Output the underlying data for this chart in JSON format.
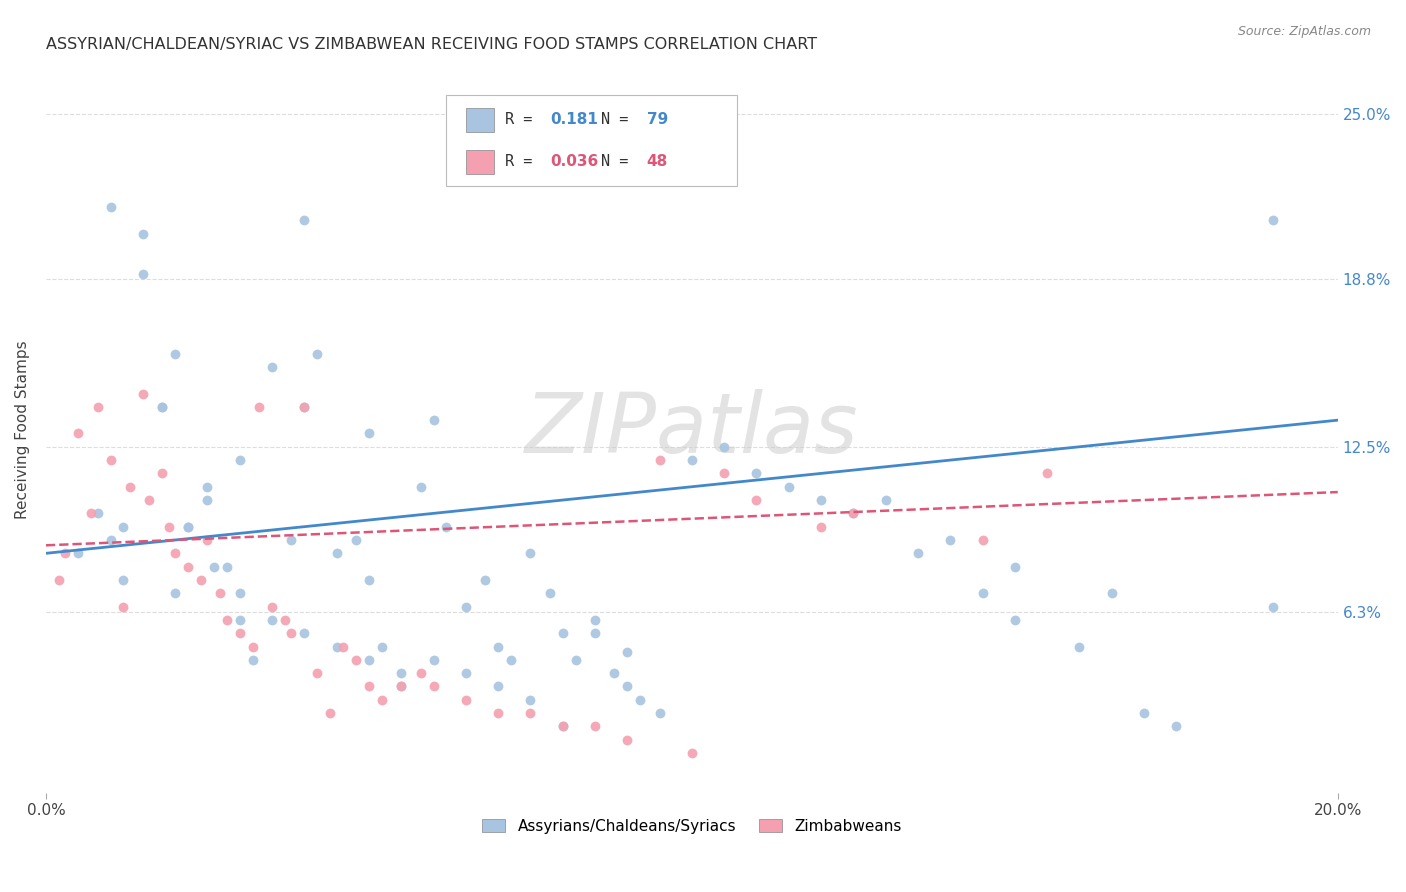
{
  "title": "ASSYRIAN/CHALDEAN/SYRIAC VS ZIMBABWEAN RECEIVING FOOD STAMPS CORRELATION CHART",
  "source": "Source: ZipAtlas.com",
  "ylabel": "Receiving Food Stamps",
  "ytick_labels": [
    "25.0%",
    "18.8%",
    "12.5%",
    "6.3%"
  ],
  "ytick_values": [
    0.25,
    0.188,
    0.125,
    0.063
  ],
  "xlim": [
    0.0,
    0.2
  ],
  "ylim": [
    -0.005,
    0.268
  ],
  "legend_series": [
    {
      "label": "Assyrians/Chaldeans/Syriacs",
      "color": "#a8c4e0",
      "R": "0.181",
      "N": "79"
    },
    {
      "label": "Zimbabweans",
      "color": "#f4a0b0",
      "R": "0.036",
      "N": "48"
    }
  ],
  "watermark": "ZIPatlas",
  "blue_scatter_x": [
    0.005,
    0.01,
    0.01,
    0.012,
    0.015,
    0.015,
    0.018,
    0.02,
    0.02,
    0.022,
    0.025,
    0.025,
    0.028,
    0.03,
    0.03,
    0.032,
    0.035,
    0.038,
    0.04,
    0.04,
    0.042,
    0.045,
    0.048,
    0.05,
    0.05,
    0.052,
    0.055,
    0.058,
    0.06,
    0.062,
    0.065,
    0.068,
    0.07,
    0.072,
    0.075,
    0.078,
    0.08,
    0.082,
    0.085,
    0.088,
    0.09,
    0.092,
    0.095,
    0.1,
    0.105,
    0.11,
    0.115,
    0.12,
    0.125,
    0.13,
    0.135,
    0.14,
    0.145,
    0.15,
    0.16,
    0.165,
    0.17,
    0.175,
    0.19,
    0.008,
    0.012,
    0.018,
    0.022,
    0.026,
    0.03,
    0.035,
    0.04,
    0.045,
    0.05,
    0.055,
    0.06,
    0.065,
    0.07,
    0.075,
    0.08,
    0.085,
    0.09,
    0.15,
    0.19
  ],
  "blue_scatter_y": [
    0.085,
    0.215,
    0.09,
    0.095,
    0.19,
    0.205,
    0.14,
    0.16,
    0.07,
    0.095,
    0.105,
    0.11,
    0.08,
    0.06,
    0.12,
    0.045,
    0.155,
    0.09,
    0.21,
    0.14,
    0.16,
    0.085,
    0.09,
    0.13,
    0.075,
    0.05,
    0.035,
    0.11,
    0.135,
    0.095,
    0.065,
    0.075,
    0.05,
    0.045,
    0.085,
    0.07,
    0.055,
    0.045,
    0.055,
    0.04,
    0.035,
    0.03,
    0.025,
    0.12,
    0.125,
    0.115,
    0.11,
    0.105,
    0.1,
    0.105,
    0.085,
    0.09,
    0.07,
    0.08,
    0.05,
    0.07,
    0.025,
    0.02,
    0.065,
    0.1,
    0.075,
    0.14,
    0.095,
    0.08,
    0.07,
    0.06,
    0.055,
    0.05,
    0.045,
    0.04,
    0.045,
    0.04,
    0.035,
    0.03,
    0.02,
    0.06,
    0.048,
    0.06,
    0.21
  ],
  "pink_scatter_x": [
    0.002,
    0.003,
    0.005,
    0.007,
    0.008,
    0.01,
    0.012,
    0.013,
    0.015,
    0.016,
    0.018,
    0.019,
    0.02,
    0.022,
    0.024,
    0.025,
    0.027,
    0.028,
    0.03,
    0.032,
    0.033,
    0.035,
    0.037,
    0.038,
    0.04,
    0.042,
    0.044,
    0.046,
    0.048,
    0.05,
    0.052,
    0.055,
    0.058,
    0.06,
    0.065,
    0.07,
    0.075,
    0.08,
    0.085,
    0.09,
    0.095,
    0.1,
    0.105,
    0.11,
    0.12,
    0.125,
    0.145,
    0.155
  ],
  "pink_scatter_y": [
    0.075,
    0.085,
    0.13,
    0.1,
    0.14,
    0.12,
    0.065,
    0.11,
    0.145,
    0.105,
    0.115,
    0.095,
    0.085,
    0.08,
    0.075,
    0.09,
    0.07,
    0.06,
    0.055,
    0.05,
    0.14,
    0.065,
    0.06,
    0.055,
    0.14,
    0.04,
    0.025,
    0.05,
    0.045,
    0.035,
    0.03,
    0.035,
    0.04,
    0.035,
    0.03,
    0.025,
    0.025,
    0.02,
    0.02,
    0.015,
    0.12,
    0.01,
    0.115,
    0.105,
    0.095,
    0.1,
    0.09,
    0.115
  ],
  "blue_line_x": [
    0.0,
    0.2
  ],
  "blue_line_y": [
    0.085,
    0.135
  ],
  "pink_line_x": [
    0.0,
    0.2
  ],
  "pink_line_y": [
    0.088,
    0.108
  ],
  "grid_color": "#dddddd",
  "bg_color": "#ffffff",
  "blue_color": "#a8c4e0",
  "pink_color": "#f4a0b0",
  "blue_line_color": "#4488cc",
  "pink_line_color": "#dd5577"
}
